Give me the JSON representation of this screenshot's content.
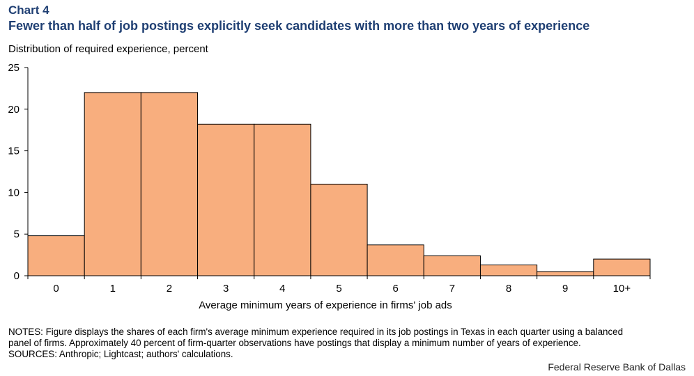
{
  "header": {
    "chart_label": "Chart 4",
    "title": "Fewer than half of job postings explicitly seek candidates with more than two years of experience"
  },
  "chart_data": {
    "type": "bar",
    "title": "Fewer than half of job postings explicitly seek candidates with more than two years of experience",
    "ylabel": "Distribution of required experience, percent",
    "xlabel": "Average minimum years of experience in firms' job ads",
    "categories": [
      "0",
      "1",
      "2",
      "3",
      "4",
      "5",
      "6",
      "7",
      "8",
      "9",
      "10+"
    ],
    "values": [
      4.8,
      22.0,
      22.0,
      18.2,
      18.2,
      11.0,
      3.7,
      2.4,
      1.3,
      0.5,
      2.0
    ],
    "ylim": [
      0,
      25
    ],
    "yticks": [
      "0",
      "5",
      "10",
      "15",
      "20",
      "25"
    ],
    "grid": false,
    "bar_color": "#f8ae7e",
    "bar_edge_color": "#000000"
  },
  "footer": {
    "notes": [
      "NOTES: Figure displays the shares of each firm's average minimum experience required in its job postings in Texas in each quarter using a balanced",
      "panel of firms. Approximately 40 percent of firm-quarter observations have postings that display a minimum number of years of experience.",
      "SOURCES: Anthropic; Lightcast; authors' calculations."
    ],
    "credit": "Federal Reserve Bank of Dallas"
  }
}
